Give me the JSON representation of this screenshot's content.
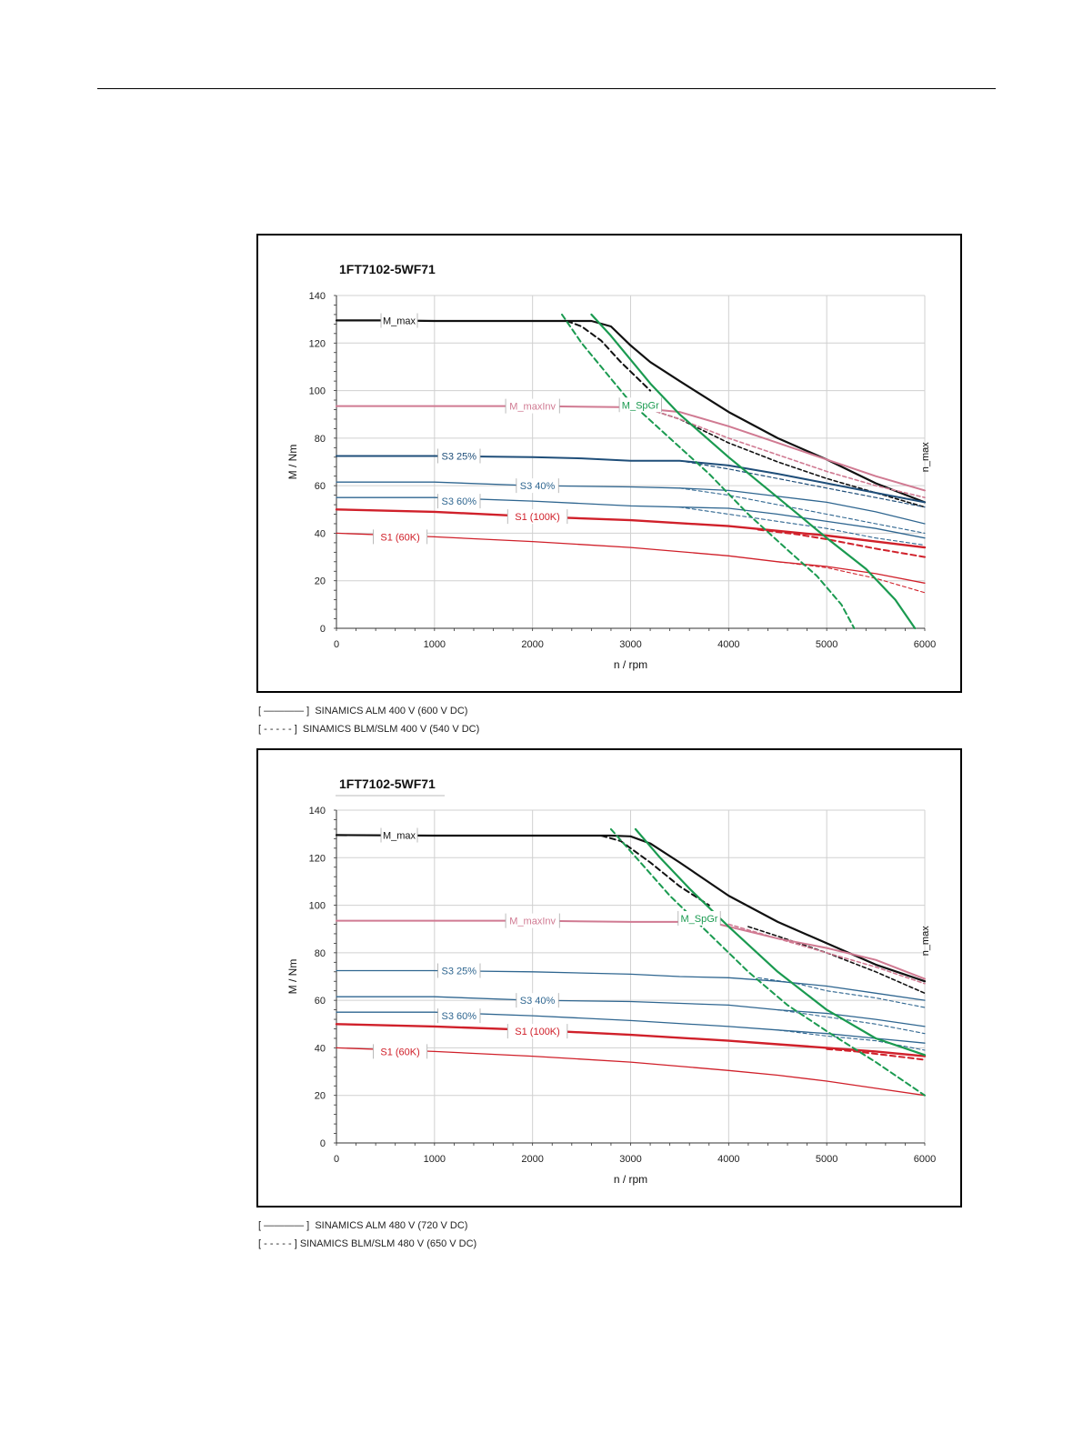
{
  "page": {
    "legend_top": [
      "[ ———— ]  SINAMICS ALM 400 V (600 V DC)",
      "[ - - - - - ]  SINAMICS BLM/SLM 400 V (540 V DC)"
    ],
    "legend_bottom": [
      "[ ———— ]  SINAMICS ALM 480 V (720 V DC)",
      "[ - - - - - ] SINAMICS BLM/SLM 480 V (650 V DC)"
    ]
  },
  "colors": {
    "black": "#111111",
    "pink": "#d07a92",
    "dark_blue": "#1f4e79",
    "blue": "#2f6690",
    "red": "#d0202a",
    "green": "#1a9a50",
    "grid": "#d0d0d0"
  },
  "chart_data": [
    {
      "type": "line",
      "title": "1FT7102-5WF71",
      "xlabel": "n / rpm",
      "ylabel": "M / Nm",
      "xlim": [
        0,
        6000
      ],
      "ylim": [
        0,
        140
      ],
      "xticks": [
        0,
        1000,
        2000,
        3000,
        4000,
        5000,
        6000
      ],
      "yticks": [
        0,
        20,
        40,
        60,
        80,
        100,
        120,
        140
      ],
      "grid": true,
      "annotations": [
        {
          "text": "M_max",
          "x": 640,
          "y": 129.5,
          "color": "black"
        },
        {
          "text": "M_maxInv",
          "x": 2000,
          "y": 93.5,
          "color": "pink"
        },
        {
          "text": "M_SpGr",
          "x": 3100,
          "y": 94,
          "color": "green"
        },
        {
          "text": "S3 25%",
          "x": 1250,
          "y": 72.5,
          "color": "dark_blue"
        },
        {
          "text": "S3 40%",
          "x": 2050,
          "y": 60,
          "color": "blue"
        },
        {
          "text": "S3 60%",
          "x": 1250,
          "y": 53.5,
          "color": "blue"
        },
        {
          "text": "S1 (100K)",
          "x": 2050,
          "y": 47,
          "color": "red"
        },
        {
          "text": "S1 (60K)",
          "x": 650,
          "y": 38.5,
          "color": "red"
        },
        {
          "text": "n_max",
          "x": 6000,
          "y": 72,
          "color": "black",
          "vertical": true
        }
      ],
      "series": [
        {
          "name": "M_max",
          "color": "black",
          "dash": false,
          "width": 2.2,
          "x": [
            0,
            500,
            1000,
            2000,
            2600,
            2800,
            3000,
            3200,
            3500,
            4000,
            4500,
            5000,
            5500,
            6000
          ],
          "y": [
            129.5,
            129.5,
            129.3,
            129.3,
            129.3,
            127,
            119,
            112,
            104,
            91,
            80,
            71,
            61,
            53
          ]
        },
        {
          "name": "M_max",
          "color": "black",
          "dash": true,
          "width": 2.0,
          "x": [
            2350,
            2500,
            2700,
            2900,
            3100,
            3200
          ],
          "y": [
            129.3,
            127,
            121,
            112,
            104,
            100
          ]
        },
        {
          "name": "M_max",
          "color": "black",
          "dash": true,
          "width": 1.6,
          "x": [
            3200,
            3500,
            4000,
            4500,
            5000,
            5500,
            6000
          ],
          "y": [
            92,
            88,
            78,
            70,
            63,
            57,
            51
          ]
        },
        {
          "name": "M_maxInv",
          "color": "pink",
          "dash": false,
          "width": 2.0,
          "x": [
            0,
            1000,
            2000,
            3000,
            3500,
            4000,
            4500,
            5000,
            5500,
            6000
          ],
          "y": [
            93.5,
            93.5,
            93.5,
            93,
            91,
            85,
            78,
            71,
            64,
            58
          ]
        },
        {
          "name": "M_maxInv",
          "color": "pink",
          "dash": true,
          "width": 1.6,
          "x": [
            3200,
            3500,
            4000,
            4500,
            5000,
            5500,
            6000
          ],
          "y": [
            92,
            88,
            80,
            73,
            66,
            60,
            55
          ]
        },
        {
          "name": "S3 25%",
          "color": "dark_blue",
          "dash": false,
          "width": 2.0,
          "x": [
            0,
            1000,
            2000,
            2500,
            3000,
            3500,
            4000,
            4500,
            5000,
            5500,
            6000
          ],
          "y": [
            72.5,
            72.5,
            72,
            71.5,
            70.5,
            70.5,
            68.5,
            65,
            61,
            57,
            53
          ]
        },
        {
          "name": "S3 25%",
          "color": "dark_blue",
          "dash": true,
          "width": 1.2,
          "x": [
            3500,
            4000,
            4500,
            5000,
            5500,
            6000
          ],
          "y": [
            70.5,
            67,
            63,
            59,
            55,
            51
          ]
        },
        {
          "name": "S3 40%",
          "color": "blue",
          "dash": false,
          "width": 1.3,
          "x": [
            0,
            1000,
            2000,
            3000,
            3500,
            4000,
            4500,
            5000,
            5500,
            6000
          ],
          "y": [
            61.5,
            61.5,
            60,
            59.5,
            59,
            58,
            55.5,
            53,
            49,
            44
          ]
        },
        {
          "name": "S3 40%",
          "color": "blue",
          "dash": true,
          "width": 1.1,
          "x": [
            3500,
            4000,
            4500,
            5000,
            5500,
            6000
          ],
          "y": [
            59,
            56,
            52,
            48,
            44,
            40
          ]
        },
        {
          "name": "S3 60%",
          "color": "blue",
          "dash": false,
          "width": 1.3,
          "x": [
            0,
            1000,
            2000,
            3000,
            3500,
            4000,
            4500,
            5000,
            5500,
            6000
          ],
          "y": [
            55,
            55,
            53.5,
            51.5,
            51,
            50.5,
            48,
            45,
            42,
            38
          ]
        },
        {
          "name": "S3 60%",
          "color": "blue",
          "dash": true,
          "width": 1.1,
          "x": [
            3500,
            4000,
            4500,
            5000,
            5500,
            6000
          ],
          "y": [
            51,
            48,
            45,
            42,
            38,
            35
          ]
        },
        {
          "name": "S1 (100K)",
          "color": "red",
          "dash": false,
          "width": 2.4,
          "x": [
            0,
            1000,
            2000,
            3000,
            4000,
            4500,
            5000,
            5500,
            6000
          ],
          "y": [
            50,
            49,
            47,
            45.5,
            43,
            41,
            39,
            36.5,
            34
          ]
        },
        {
          "name": "S1 (100K)",
          "color": "red",
          "dash": true,
          "width": 2.0,
          "x": [
            4300,
            4700,
            5000,
            5500,
            6000
          ],
          "y": [
            41.5,
            39.5,
            37.5,
            33.5,
            30
          ]
        },
        {
          "name": "S1 (60K)",
          "color": "red",
          "dash": false,
          "width": 1.3,
          "x": [
            0,
            1000,
            2000,
            3000,
            4000,
            4500,
            5000,
            5500,
            6000
          ],
          "y": [
            40,
            38.5,
            36.5,
            34,
            30.5,
            28,
            26,
            23,
            19
          ]
        },
        {
          "name": "S1 (60K)",
          "color": "red",
          "dash": true,
          "width": 1.1,
          "x": [
            4500,
            5000,
            5500,
            6000
          ],
          "y": [
            28,
            25.5,
            21,
            15
          ]
        },
        {
          "name": "M_SpGr",
          "color": "green",
          "dash": false,
          "width": 2.2,
          "x": [
            2600,
            2800,
            3000,
            3200,
            3500,
            4000,
            4500,
            5000,
            5400,
            5700,
            5900
          ],
          "y": [
            132,
            123,
            113,
            103,
            90,
            72,
            55,
            38,
            25,
            12,
            0
          ]
        },
        {
          "name": "M_SpGr",
          "color": "green",
          "dash": true,
          "width": 2.0,
          "x": [
            2300,
            2500,
            2800,
            3000,
            3400,
            3800,
            4200,
            4600,
            4900,
            5150,
            5280
          ],
          "y": [
            132,
            120,
            105,
            95,
            80,
            65,
            48,
            33,
            22,
            10,
            0
          ]
        }
      ]
    },
    {
      "type": "line",
      "title": "1FT7102-5WF71",
      "xlabel": "n / rpm",
      "ylabel": "M / Nm",
      "xlim": [
        0,
        6000
      ],
      "ylim": [
        0,
        140
      ],
      "xticks": [
        0,
        1000,
        2000,
        3000,
        4000,
        5000,
        6000
      ],
      "yticks": [
        0,
        20,
        40,
        60,
        80,
        100,
        120,
        140
      ],
      "grid": true,
      "annotations": [
        {
          "text": "M_max",
          "x": 640,
          "y": 129.5,
          "color": "black"
        },
        {
          "text": "M_maxInv",
          "x": 2000,
          "y": 93.5,
          "color": "pink"
        },
        {
          "text": "M_SpGr",
          "x": 3700,
          "y": 94.5,
          "color": "green"
        },
        {
          "text": "S3 25%",
          "x": 1250,
          "y": 72.5,
          "color": "blue"
        },
        {
          "text": "S3 40%",
          "x": 2050,
          "y": 60,
          "color": "blue"
        },
        {
          "text": "S3 60%",
          "x": 1250,
          "y": 53.5,
          "color": "blue"
        },
        {
          "text": "S1 (100K)",
          "x": 2050,
          "y": 47,
          "color": "red"
        },
        {
          "text": "S1 (60K)",
          "x": 650,
          "y": 38.5,
          "color": "red"
        },
        {
          "text": "n_max",
          "x": 6000,
          "y": 85,
          "color": "black",
          "vertical": true
        }
      ],
      "series": [
        {
          "name": "M_max",
          "color": "black",
          "dash": false,
          "width": 2.2,
          "x": [
            0,
            1000,
            2000,
            2800,
            3000,
            3200,
            3500,
            4000,
            4500,
            5000,
            5500,
            6000
          ],
          "y": [
            129.5,
            129.3,
            129.3,
            129.3,
            129,
            126,
            118,
            104,
            93,
            84,
            75,
            68
          ]
        },
        {
          "name": "M_max",
          "color": "black",
          "dash": true,
          "width": 2.0,
          "x": [
            2700,
            2900,
            3200,
            3500,
            3800
          ],
          "y": [
            129.3,
            127,
            118,
            108,
            100
          ]
        },
        {
          "name": "M_max",
          "color": "black",
          "dash": true,
          "width": 1.6,
          "x": [
            4200,
            4500,
            5000,
            5500,
            6000
          ],
          "y": [
            91,
            87,
            80,
            72,
            63
          ]
        },
        {
          "name": "M_maxInv",
          "color": "pink",
          "dash": false,
          "width": 2.0,
          "x": [
            0,
            1000,
            2000,
            3000,
            3800,
            4200,
            4500,
            5000,
            5500,
            6000
          ],
          "y": [
            93.5,
            93.5,
            93.5,
            93,
            93,
            89,
            86,
            82,
            77,
            69
          ]
        },
        {
          "name": "M_maxInv",
          "color": "pink",
          "dash": true,
          "width": 1.6,
          "x": [
            4000,
            4500,
            5000,
            5500,
            6000
          ],
          "y": [
            92,
            86,
            80,
            74,
            67
          ]
        },
        {
          "name": "S3 25%",
          "color": "blue",
          "dash": false,
          "width": 1.3,
          "x": [
            0,
            1000,
            2000,
            3000,
            3500,
            4000,
            4500,
            5000,
            5500,
            6000
          ],
          "y": [
            72.5,
            72.5,
            72,
            71,
            70,
            69.5,
            68,
            66,
            63,
            60
          ]
        },
        {
          "name": "S3 25%",
          "color": "blue",
          "dash": true,
          "width": 1.1,
          "x": [
            4300,
            4700,
            5000,
            5500,
            6000
          ],
          "y": [
            69.5,
            67,
            64,
            61,
            57
          ]
        },
        {
          "name": "S3 40%",
          "color": "blue",
          "dash": false,
          "width": 1.3,
          "x": [
            0,
            1000,
            2000,
            3000,
            4000,
            4500,
            5000,
            5500,
            6000
          ],
          "y": [
            61.5,
            61.5,
            60,
            59.5,
            58,
            56,
            54.5,
            52,
            49
          ]
        },
        {
          "name": "S3 40%",
          "color": "blue",
          "dash": true,
          "width": 1.1,
          "x": [
            4500,
            5000,
            5500,
            6000
          ],
          "y": [
            56,
            53,
            50,
            46
          ]
        },
        {
          "name": "S3 60%",
          "color": "blue",
          "dash": false,
          "width": 1.3,
          "x": [
            0,
            1000,
            2000,
            3000,
            4000,
            4500,
            5000,
            5500,
            6000
          ],
          "y": [
            55,
            55,
            53.5,
            51.5,
            49,
            47.5,
            46,
            44,
            42
          ]
        },
        {
          "name": "S3 60%",
          "color": "blue",
          "dash": true,
          "width": 1.1,
          "x": [
            4500,
            5000,
            5500,
            6000
          ],
          "y": [
            47.5,
            45,
            43,
            39
          ]
        },
        {
          "name": "S1 (100K)",
          "color": "red",
          "dash": false,
          "width": 2.4,
          "x": [
            0,
            1000,
            2000,
            3000,
            4000,
            4500,
            5000,
            5500,
            6000
          ],
          "y": [
            50,
            49,
            47.5,
            45.5,
            43,
            41.5,
            40,
            38.5,
            36.5
          ]
        },
        {
          "name": "S1 (100K)",
          "color": "red",
          "dash": true,
          "width": 2.0,
          "x": [
            5000,
            5300,
            5600,
            6000
          ],
          "y": [
            39.5,
            38.5,
            37,
            35
          ]
        },
        {
          "name": "S1 (60K)",
          "color": "red",
          "dash": false,
          "width": 1.3,
          "x": [
            0,
            1000,
            2000,
            3000,
            4000,
            4500,
            5000,
            5500,
            6000
          ],
          "y": [
            40,
            38.5,
            36.5,
            34,
            30.5,
            28.5,
            26,
            23,
            20
          ]
        },
        {
          "name": "M_SpGr",
          "color": "green",
          "dash": false,
          "width": 2.2,
          "x": [
            3050,
            3300,
            3600,
            4000,
            4500,
            5000,
            5500,
            6000
          ],
          "y": [
            132,
            120,
            107,
            91,
            72,
            56,
            44,
            37
          ]
        },
        {
          "name": "M_SpGr",
          "color": "green",
          "dash": true,
          "width": 2.0,
          "x": [
            2800,
            3100,
            3400,
            3800,
            4200,
            4600,
            5000,
            5500,
            6000
          ],
          "y": [
            132,
            118,
            104,
            88,
            72,
            58,
            47,
            34,
            20
          ]
        }
      ]
    }
  ]
}
